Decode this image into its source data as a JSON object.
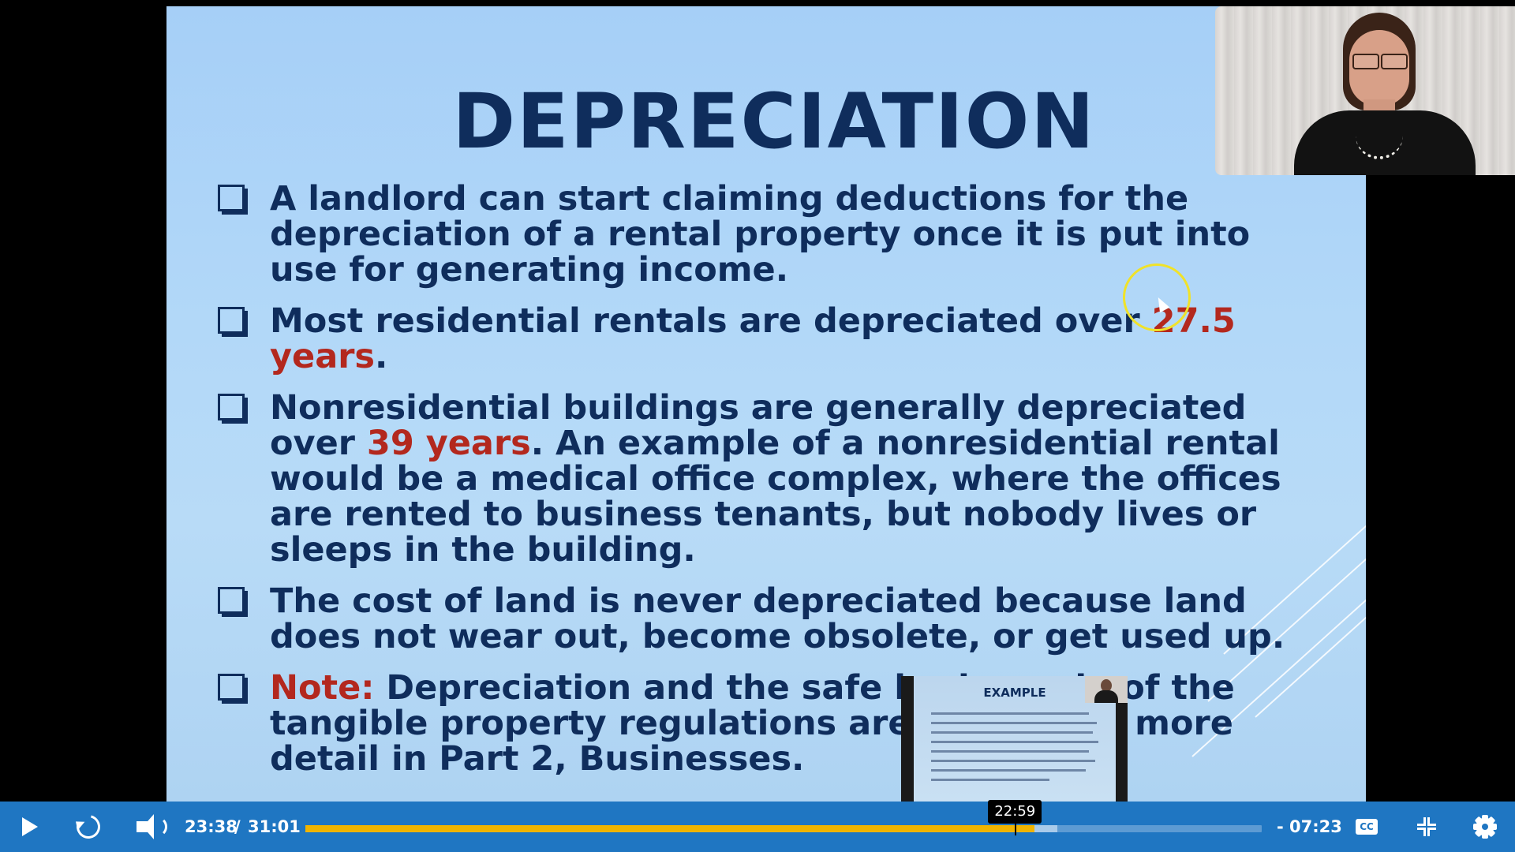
{
  "slide": {
    "title": "DEPRECIATION",
    "bullets": [
      {
        "parts": [
          {
            "text": "A landlord can start claiming deductions for the depreciation of a rental property once it is put into use for generating income.",
            "emphasis": false
          }
        ]
      },
      {
        "parts": [
          {
            "text": "Most residential rentals are depreciated over ",
            "emphasis": false
          },
          {
            "text": "27.5 years",
            "emphasis": true
          },
          {
            "text": ".",
            "emphasis": false
          }
        ]
      },
      {
        "parts": [
          {
            "text": "Nonresidential buildings are generally depreciated over ",
            "emphasis": false
          },
          {
            "text": "39 years",
            "emphasis": true
          },
          {
            "text": ". An example of a nonresidential rental would be a medical office complex, where the offices are rented to business tenants, but nobody lives or sleeps in the building.",
            "emphasis": false
          }
        ]
      },
      {
        "parts": [
          {
            "text": "The cost of land is never depreciated because land does not wear out, become obsolete, or get used up.",
            "emphasis": false
          }
        ]
      },
      {
        "parts": [
          {
            "text": "Note:",
            "emphasis": true
          },
          {
            "text": " Depreciation and the safe harbor rule of the tangible property regulations are covered in more detail in Part 2, Businesses.",
            "emphasis": false
          }
        ]
      }
    ],
    "colors": {
      "text": "#0f2d5c",
      "highlight": "#b3281e",
      "background": "#a6cff7"
    }
  },
  "preview": {
    "title": "EXAMPLE"
  },
  "player": {
    "current_time": "23:38",
    "separator": "/",
    "total_time": "31:01",
    "remaining_time": "- 07:23",
    "hover_time": "22:59",
    "progress": {
      "played_fraction": 0.762,
      "buffered_fraction": 0.786,
      "hover_fraction": 0.742
    },
    "icons": {
      "play": "play-icon",
      "replay": "replay-icon",
      "volume": "volume-icon",
      "captions": "closed-captions-icon",
      "exit_fullscreen": "exit-fullscreen-icon",
      "settings": "gear-icon"
    },
    "captions_label": "CC",
    "bar_color": "#1f76c2",
    "played_color": "#f0b400"
  }
}
